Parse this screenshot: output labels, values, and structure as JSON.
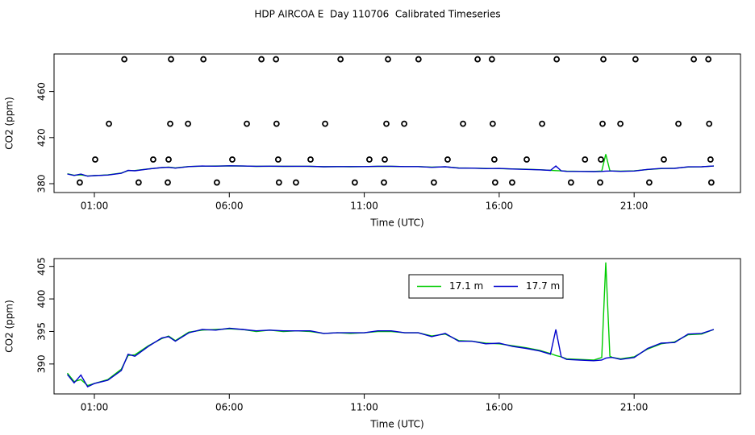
{
  "chart_data": [
    {
      "type": "line",
      "title": "HDP AIRCOA E  Day 110706  Calibrated Timeseries",
      "xlabel": "Time (UTC)",
      "ylabel": "CO2 (ppm)",
      "xlim": [
        -0.494,
        24.94
      ],
      "ylim": [
        372.3,
        492.6
      ],
      "xticks": [
        {
          "value": 1,
          "label": "01:00"
        },
        {
          "value": 6,
          "label": "06:00"
        },
        {
          "value": 11,
          "label": "11:00"
        },
        {
          "value": 16,
          "label": "16:00"
        },
        {
          "value": 21,
          "label": "21:00"
        }
      ],
      "yticks": [
        380,
        420,
        460
      ],
      "x": [
        0,
        0.25,
        0.5,
        0.75,
        1,
        1.5,
        2,
        2.25,
        2.5,
        3,
        3.5,
        3.75,
        4,
        4.5,
        5,
        5.5,
        6,
        6.5,
        7,
        7.5,
        8,
        8.5,
        9,
        9.5,
        10,
        10.5,
        11,
        11.5,
        12,
        12.5,
        13,
        13.5,
        14,
        14.5,
        15,
        15.5,
        16,
        16.5,
        17,
        17.5,
        17.9,
        18.1,
        18.3,
        18.5,
        19,
        19.5,
        19.8,
        19.95,
        20.1,
        20.2,
        20.5,
        21,
        21.5,
        22,
        22.5,
        23,
        23.5,
        23.95
      ],
      "series": [
        {
          "color": "#00cc00",
          "values": [
            388.6,
            387.3,
            387.6,
            386.7,
            387.0,
            387.6,
            389.2,
            391.3,
            391.4,
            392.8,
            393.9,
            394.3,
            393.6,
            394.9,
            395.2,
            395.3,
            395.4,
            395.3,
            395.0,
            395.2,
            395.0,
            395.1,
            395.0,
            394.7,
            394.8,
            394.7,
            394.8,
            395.0,
            395.0,
            394.8,
            394.8,
            394.3,
            394.6,
            393.6,
            393.5,
            393.2,
            393.1,
            392.8,
            392.5,
            392.1,
            391.6,
            391.3,
            391.1,
            390.8,
            390.7,
            390.6,
            391.0,
            405.6,
            391.2,
            391.0,
            390.8,
            391.1,
            392.3,
            393.1,
            393.4,
            394.5,
            394.6,
            395.3
          ]
        },
        {
          "color": "#0000cc",
          "values": [
            388.4,
            387.1,
            388.3,
            386.5,
            387.0,
            387.5,
            389.0,
            391.5,
            391.2,
            392.7,
            394.0,
            394.2,
            393.5,
            394.8,
            395.3,
            395.2,
            395.5,
            395.3,
            395.1,
            395.2,
            395.1,
            395.1,
            395.1,
            394.7,
            394.8,
            394.8,
            394.8,
            395.1,
            395.1,
            394.8,
            394.8,
            394.2,
            394.7,
            393.5,
            393.5,
            393.1,
            393.2,
            392.7,
            392.4,
            392.0,
            391.5,
            395.3,
            391.1,
            390.7,
            390.6,
            390.5,
            390.6,
            390.9,
            391.0,
            391.0,
            390.7,
            391.0,
            392.4,
            393.2,
            393.3,
            394.6,
            394.7,
            395.3
          ]
        },
        {
          "marker": "circle",
          "color": "#000000",
          "x": [
            2.11,
            3.84,
            5.04,
            7.19,
            7.73,
            10.12,
            11.88,
            13.01,
            15.2,
            15.73,
            18.13,
            19.86,
            21.05,
            23.21,
            23.75,
            1.54,
            3.81,
            4.47,
            6.65,
            7.75,
            9.55,
            11.82,
            12.48,
            14.66,
            15.76,
            17.59,
            19.83,
            20.49,
            22.64,
            23.78,
            1.03,
            3.18,
            3.75,
            6.11,
            7.81,
            9.01,
            11.19,
            11.76,
            14.09,
            15.82,
            17.02,
            19.18,
            19.77,
            22.1,
            23.83,
            0.46,
            2.64,
            3.72,
            5.54,
            7.84,
            8.47,
            10.65,
            11.73,
            13.58,
            15.85,
            16.48,
            18.66,
            19.74,
            21.56,
            23.86
          ],
          "values": [
            488,
            488,
            488,
            488,
            488,
            488,
            488,
            488,
            488,
            488,
            488,
            488,
            488,
            488,
            488,
            432,
            432,
            432,
            432,
            432,
            432,
            432,
            432,
            432,
            432,
            432,
            432,
            432,
            432,
            432,
            401,
            401,
            401,
            401,
            401,
            401,
            401,
            401,
            401,
            401,
            401,
            401,
            401,
            401,
            401,
            381,
            381,
            381,
            381,
            381,
            381,
            381,
            381,
            381,
            381,
            381,
            381,
            381,
            381,
            381
          ]
        }
      ]
    },
    {
      "type": "line",
      "xlabel": "Time (UTC)",
      "ylabel": "CO2 (ppm)",
      "xlim": [
        -0.494,
        24.94
      ],
      "ylim": [
        385.4,
        406.2
      ],
      "xticks": [
        {
          "value": 1,
          "label": "01:00"
        },
        {
          "value": 6,
          "label": "06:00"
        },
        {
          "value": 11,
          "label": "11:00"
        },
        {
          "value": 16,
          "label": "16:00"
        },
        {
          "value": 21,
          "label": "21:00"
        }
      ],
      "yticks": [
        390,
        395,
        400,
        405
      ],
      "legend": "top",
      "x": [
        0,
        0.25,
        0.5,
        0.75,
        1,
        1.5,
        2,
        2.25,
        2.5,
        3,
        3.5,
        3.75,
        4,
        4.5,
        5,
        5.5,
        6,
        6.5,
        7,
        7.5,
        8,
        8.5,
        9,
        9.5,
        10,
        10.5,
        11,
        11.5,
        12,
        12.5,
        13,
        13.5,
        14,
        14.5,
        15,
        15.5,
        16,
        16.5,
        17,
        17.5,
        17.9,
        18.1,
        18.3,
        18.5,
        19,
        19.5,
        19.8,
        19.95,
        20.1,
        20.2,
        20.5,
        21,
        21.5,
        22,
        22.5,
        23,
        23.5,
        23.95
      ],
      "series": [
        {
          "name": "17.1 m",
          "color": "#00cc00",
          "values": [
            388.6,
            387.3,
            387.6,
            386.7,
            387.0,
            387.6,
            389.2,
            391.3,
            391.4,
            392.8,
            393.9,
            394.3,
            393.6,
            394.9,
            395.2,
            395.3,
            395.4,
            395.3,
            395.0,
            395.2,
            395.0,
            395.1,
            395.0,
            394.7,
            394.8,
            394.7,
            394.8,
            395.0,
            395.0,
            394.8,
            394.8,
            394.3,
            394.6,
            393.6,
            393.5,
            393.2,
            393.1,
            392.8,
            392.5,
            392.1,
            391.6,
            391.3,
            391.1,
            390.8,
            390.7,
            390.6,
            391.0,
            405.6,
            391.2,
            391.0,
            390.8,
            391.1,
            392.3,
            393.1,
            393.4,
            394.5,
            394.6,
            395.3
          ]
        },
        {
          "name": "17.7 m",
          "color": "#0000cc",
          "values": [
            388.4,
            387.1,
            388.3,
            386.5,
            387.0,
            387.5,
            389.0,
            391.5,
            391.2,
            392.7,
            394.0,
            394.2,
            393.5,
            394.8,
            395.3,
            395.2,
            395.5,
            395.3,
            395.1,
            395.2,
            395.1,
            395.1,
            395.1,
            394.7,
            394.8,
            394.8,
            394.8,
            395.1,
            395.1,
            394.8,
            394.8,
            394.2,
            394.7,
            393.5,
            393.5,
            393.1,
            393.2,
            392.7,
            392.4,
            392.0,
            391.5,
            395.3,
            391.1,
            390.7,
            390.6,
            390.5,
            390.6,
            390.9,
            391.0,
            391.0,
            390.7,
            391.0,
            392.4,
            393.2,
            393.3,
            394.6,
            394.7,
            395.3
          ]
        }
      ]
    }
  ]
}
